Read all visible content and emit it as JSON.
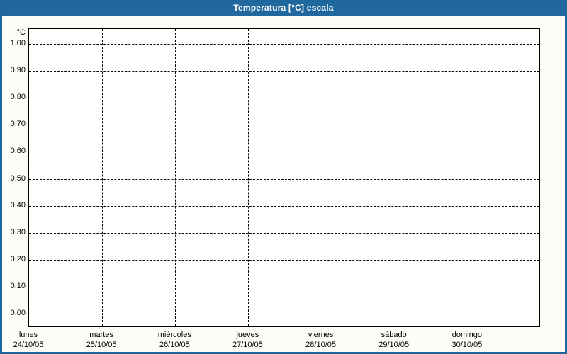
{
  "window": {
    "title": "Temperatura [°C] escala"
  },
  "colors": {
    "titlebar": "#20689e",
    "frame_border": "#1e679d",
    "background": "#fdfdf7",
    "plot_background": "#fffffe",
    "grid": "#000000",
    "text": "#000000",
    "title_text": "#ffffff"
  },
  "chart_data": {
    "type": "line",
    "title": "Temperatura [°C] escala",
    "grid": "dashed",
    "legend_position": "none",
    "y_axis": {
      "unit_label": "°C",
      "min": 0.0,
      "max": 1.0,
      "step": 0.1,
      "tick_labels_top_to_bottom": [
        "1,00",
        "0,90",
        "0,80",
        "0,70",
        "0,60",
        "0,50",
        "0,40",
        "0,30",
        "0,20",
        "0,10",
        "0,00"
      ]
    },
    "x_axis": {
      "categories": [
        {
          "day": "lunes",
          "date": "24/10/05"
        },
        {
          "day": "martes",
          "date": "25/10/05"
        },
        {
          "day": "miércoles",
          "date": "26/10/05"
        },
        {
          "day": "jueves",
          "date": "27/10/05"
        },
        {
          "day": "viernes",
          "date": "28/10/05"
        },
        {
          "day": "sábado",
          "date": "29/10/05"
        },
        {
          "day": "domingo",
          "date": "30/10/05"
        }
      ]
    },
    "series": []
  }
}
